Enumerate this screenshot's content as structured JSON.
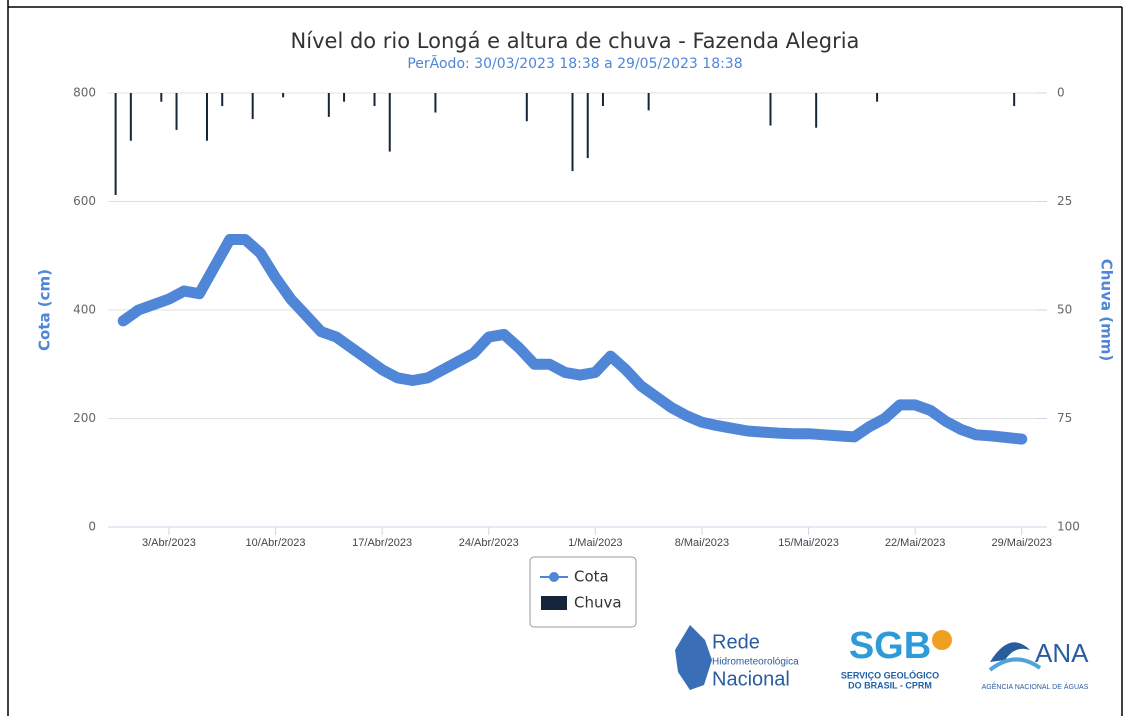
{
  "chart_data": {
    "type": "line-bar",
    "title": "Nível do rio Longá e altura de chuva - Fazenda Alegria",
    "subtitle": "PerÃodo: 30/03/2023 18:38 a 29/05/2023 18:38",
    "ylabel": "Cota (cm)",
    "y2label": "Chuva (mm)",
    "xlim": [
      "2023-03-30",
      "2023-05-30"
    ],
    "xticks": [
      {
        "value": "2023-04-03",
        "label": "3/Abr/2023"
      },
      {
        "value": "2023-04-10",
        "label": "10/Abr/2023"
      },
      {
        "value": "2023-04-17",
        "label": "17/Abr/2023"
      },
      {
        "value": "2023-04-24",
        "label": "24/Abr/2023"
      },
      {
        "value": "2023-05-01",
        "label": "1/Mai/2023"
      },
      {
        "value": "2023-05-08",
        "label": "8/Mai/2023"
      },
      {
        "value": "2023-05-15",
        "label": "15/Mai/2023"
      },
      {
        "value": "2023-05-22",
        "label": "22/Mai/2023"
      },
      {
        "value": "2023-05-29",
        "label": "29/Mai/2023"
      }
    ],
    "ylim": [
      0,
      800
    ],
    "yticks": [
      0,
      200,
      400,
      600,
      800
    ],
    "y2lim": [
      0,
      100
    ],
    "y2ticks": [
      0,
      25,
      50,
      75,
      100
    ],
    "y2_reversed": true,
    "grid": true,
    "legend": "bottom",
    "series": [
      {
        "name": "Cota",
        "type": "line",
        "color": "#4f86d8",
        "x": [
          "2023-03-31",
          "2023-04-01",
          "2023-04-02",
          "2023-04-03",
          "2023-04-04",
          "2023-04-05",
          "2023-04-06",
          "2023-04-07",
          "2023-04-08",
          "2023-04-09",
          "2023-04-10",
          "2023-04-11",
          "2023-04-12",
          "2023-04-13",
          "2023-04-14",
          "2023-04-15",
          "2023-04-16",
          "2023-04-17",
          "2023-04-18",
          "2023-04-19",
          "2023-04-20",
          "2023-04-21",
          "2023-04-22",
          "2023-04-23",
          "2023-04-24",
          "2023-04-25",
          "2023-04-26",
          "2023-04-27",
          "2023-04-28",
          "2023-04-29",
          "2023-04-30",
          "2023-05-01",
          "2023-05-02",
          "2023-05-03",
          "2023-05-04",
          "2023-05-05",
          "2023-05-06",
          "2023-05-07",
          "2023-05-08",
          "2023-05-09",
          "2023-05-10",
          "2023-05-11",
          "2023-05-12",
          "2023-05-13",
          "2023-05-14",
          "2023-05-15",
          "2023-05-16",
          "2023-05-17",
          "2023-05-18",
          "2023-05-19",
          "2023-05-20",
          "2023-05-21",
          "2023-05-22",
          "2023-05-23",
          "2023-05-24",
          "2023-05-25",
          "2023-05-26",
          "2023-05-27",
          "2023-05-28",
          "2023-05-29"
        ],
        "values": [
          380,
          400,
          410,
          420,
          435,
          430,
          480,
          530,
          530,
          505,
          460,
          420,
          390,
          360,
          350,
          330,
          310,
          290,
          275,
          270,
          275,
          290,
          305,
          320,
          350,
          355,
          330,
          300,
          300,
          285,
          280,
          285,
          315,
          290,
          260,
          240,
          220,
          205,
          193,
          187,
          182,
          177,
          175,
          173,
          172,
          172,
          170,
          168,
          166,
          185,
          200,
          225,
          225,
          215,
          195,
          180,
          170,
          168,
          165,
          162
        ]
      },
      {
        "name": "Chuva",
        "type": "bar",
        "axis": "y2",
        "color": "#15263a",
        "x": [
          "2023-03-30",
          "2023-03-31",
          "2023-04-02",
          "2023-04-03",
          "2023-04-05",
          "2023-04-06",
          "2023-04-08",
          "2023-04-10",
          "2023-04-13",
          "2023-04-14",
          "2023-04-16",
          "2023-04-17",
          "2023-04-20",
          "2023-04-26",
          "2023-04-29",
          "2023-04-30",
          "2023-05-01",
          "2023-05-04",
          "2023-05-12",
          "2023-05-15",
          "2023-05-19",
          "2023-05-28"
        ],
        "values": [
          23.5,
          11,
          2,
          8.5,
          11,
          3,
          6,
          1,
          5.5,
          2,
          3,
          13.5,
          4.5,
          6.5,
          18,
          15,
          3,
          4,
          7.5,
          8,
          2,
          3
        ]
      }
    ]
  },
  "logos": {
    "rede": [
      "Rede",
      "Hidrometeorológica",
      "Nacional"
    ],
    "sgb": {
      "title": "SGB",
      "subtitle": [
        "SERVIÇO GEOLÓGICO",
        "DO BRASIL - CPRM"
      ]
    },
    "ana": {
      "title": "ANA",
      "subtitle": "AGÊNCIA NACIONAL DE ÁGUAS"
    }
  }
}
